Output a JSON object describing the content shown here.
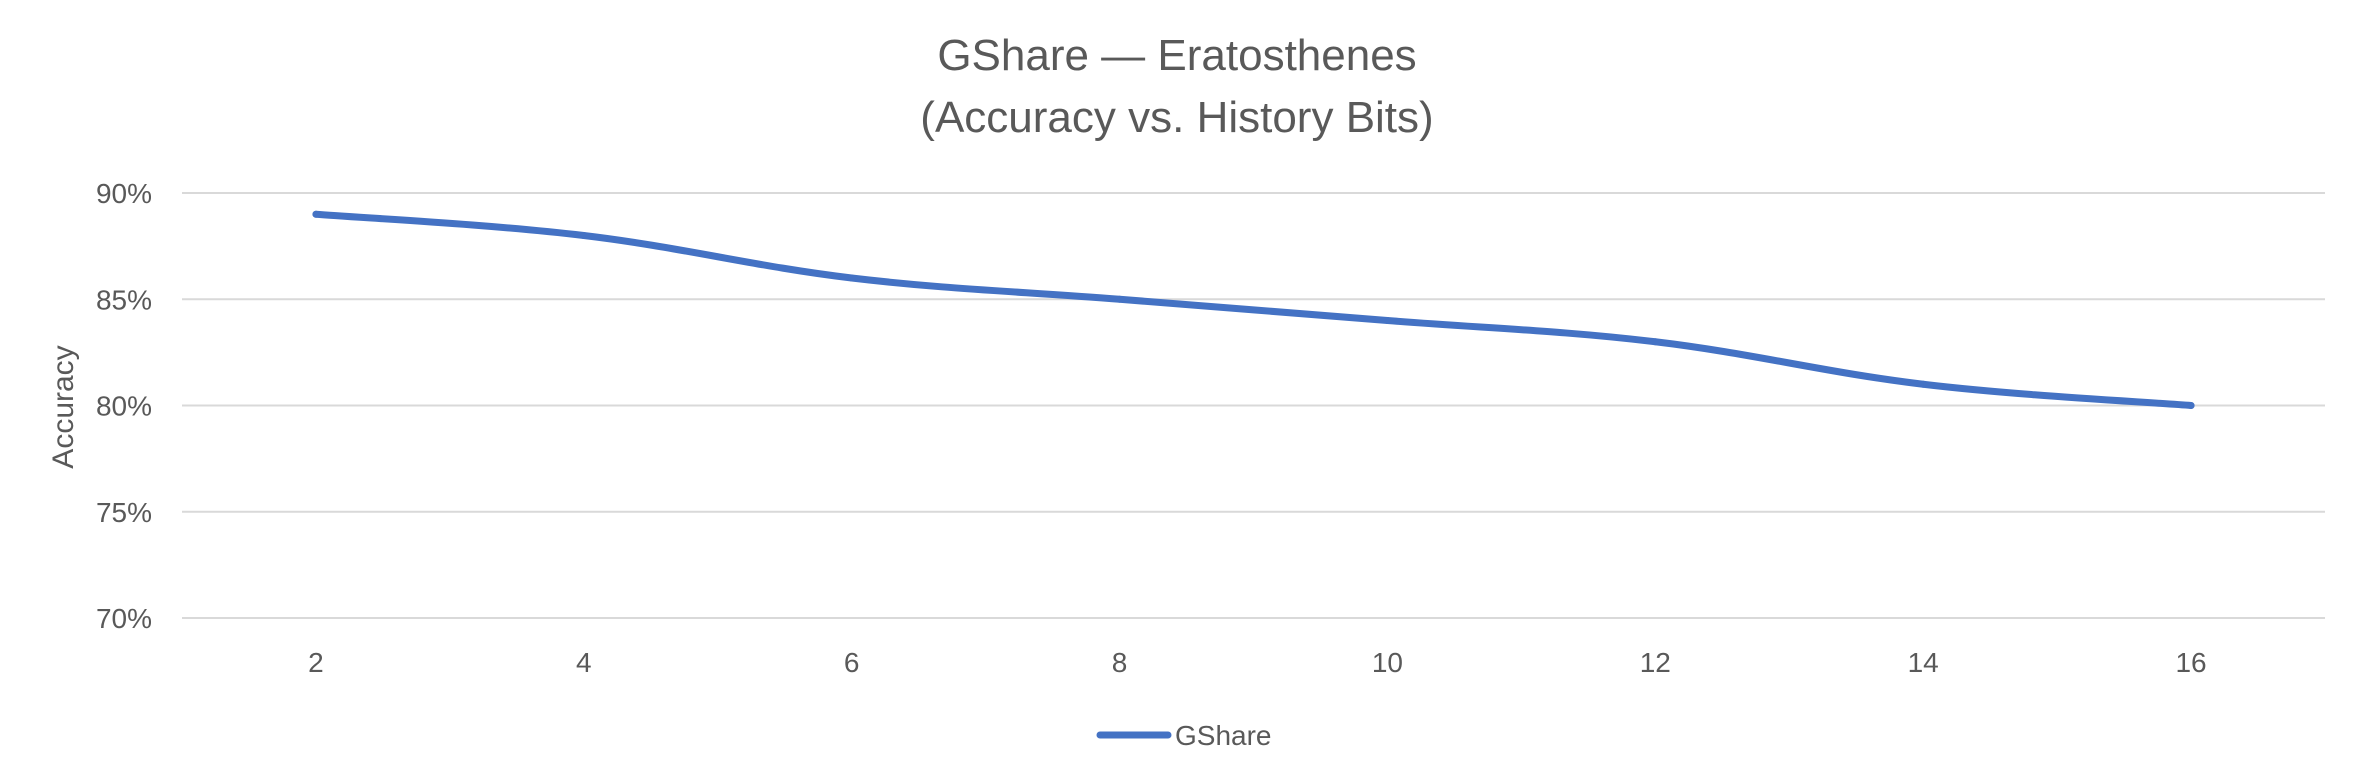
{
  "chart_data": {
    "type": "line",
    "title_lines": [
      "GShare — Eratosthenes",
      "(Accuracy vs. History Bits)"
    ],
    "xlabel": "",
    "ylabel": "Accuracy",
    "categories": [
      "2",
      "4",
      "6",
      "8",
      "10",
      "12",
      "14",
      "16"
    ],
    "ylim": [
      70,
      90
    ],
    "yticks": [
      {
        "value": 90,
        "label": "90%"
      },
      {
        "value": 85,
        "label": "85%"
      },
      {
        "value": 80,
        "label": "80%"
      },
      {
        "value": 75,
        "label": "75%"
      },
      {
        "value": 70,
        "label": "70%"
      }
    ],
    "grid": true,
    "legend_position": "bottom",
    "series": [
      {
        "name": "GShare",
        "color": "#4472C4",
        "values": [
          89,
          88,
          86,
          85,
          84,
          83,
          81,
          80
        ]
      }
    ]
  }
}
